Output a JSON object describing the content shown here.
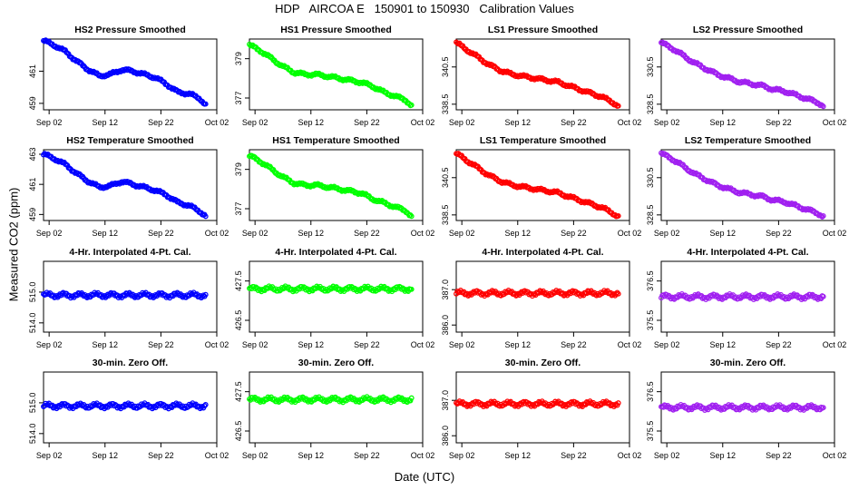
{
  "title": "HDP   AIRCOA E   150901 to 150930   Calibration Values",
  "ylabel": "Measured CO2 (ppm)",
  "xlabel": "Date (UTC)",
  "chart_data": [
    {
      "type": "scatter",
      "title": "HS2 Pressure Smoothed",
      "color": "#0000ff",
      "x_ticks": [
        "Sep 02",
        "Sep 12",
        "Sep 22",
        "Oct 02"
      ],
      "x_tick_days": [
        2,
        12,
        22,
        32
      ],
      "xlim": [
        1,
        32
      ],
      "y_ticks": [
        "459",
        "461"
      ],
      "y_tick_values": [
        459,
        461
      ],
      "ylim": [
        458.6,
        463.0
      ],
      "points": [
        [
          1,
          462.9
        ],
        [
          3,
          462.6
        ],
        [
          5,
          462.2
        ],
        [
          7,
          461.6
        ],
        [
          9,
          461.1
        ],
        [
          11,
          460.7
        ],
        [
          13,
          460.8
        ],
        [
          15,
          461.1
        ],
        [
          17,
          461.0
        ],
        [
          19,
          460.8
        ],
        [
          21,
          460.6
        ],
        [
          23,
          460.2
        ],
        [
          25,
          459.7
        ],
        [
          27,
          459.6
        ],
        [
          29,
          459.3
        ],
        [
          30,
          458.9
        ]
      ]
    },
    {
      "type": "scatter",
      "title": "HS1 Pressure Smoothed",
      "color": "#00ff00",
      "x_ticks": [
        "Sep 02",
        "Sep 12",
        "Sep 22",
        "Oct 02"
      ],
      "x_tick_days": [
        2,
        12,
        22,
        32
      ],
      "xlim": [
        1,
        32
      ],
      "y_ticks": [
        "377",
        "379"
      ],
      "y_tick_values": [
        377,
        379
      ],
      "ylim": [
        376.4,
        380.0
      ],
      "points": [
        [
          1,
          379.7
        ],
        [
          3,
          379.4
        ],
        [
          5,
          379.0
        ],
        [
          7,
          378.6
        ],
        [
          9,
          378.3
        ],
        [
          11,
          378.2
        ],
        [
          13,
          378.2
        ],
        [
          15,
          378.1
        ],
        [
          17,
          378.0
        ],
        [
          19,
          377.9
        ],
        [
          21,
          377.8
        ],
        [
          23,
          377.6
        ],
        [
          25,
          377.3
        ],
        [
          27,
          377.1
        ],
        [
          29,
          376.9
        ],
        [
          30,
          376.6
        ]
      ]
    },
    {
      "type": "scatter",
      "title": "LS1 Pressure Smoothed",
      "color": "#ff0000",
      "x_ticks": [
        "Sep 02",
        "Sep 12",
        "Sep 22",
        "Oct 02"
      ],
      "x_tick_days": [
        2,
        12,
        22,
        32
      ],
      "xlim": [
        1,
        32
      ],
      "y_ticks": [
        "338.5",
        "340.5"
      ],
      "y_tick_values": [
        338.5,
        340.5
      ],
      "ylim": [
        338.2,
        342.0
      ],
      "points": [
        [
          1,
          341.8
        ],
        [
          3,
          341.4
        ],
        [
          5,
          341.0
        ],
        [
          7,
          340.6
        ],
        [
          9,
          340.3
        ],
        [
          11,
          340.1
        ],
        [
          13,
          340.0
        ],
        [
          15,
          339.9
        ],
        [
          17,
          339.8
        ],
        [
          19,
          339.7
        ],
        [
          21,
          339.5
        ],
        [
          23,
          339.3
        ],
        [
          25,
          339.1
        ],
        [
          27,
          338.9
        ],
        [
          29,
          338.6
        ],
        [
          30,
          338.4
        ]
      ]
    },
    {
      "type": "scatter",
      "title": "LS2 Pressure Smoothed",
      "color": "#a020f0",
      "x_ticks": [
        "Sep 02",
        "Sep 12",
        "Sep 22",
        "Oct 02"
      ],
      "x_tick_days": [
        2,
        12,
        22,
        32
      ],
      "xlim": [
        1,
        32
      ],
      "y_ticks": [
        "328.5",
        "330.5"
      ],
      "y_tick_values": [
        328.5,
        330.5
      ],
      "ylim": [
        328.2,
        332.0
      ],
      "points": [
        [
          1,
          331.8
        ],
        [
          3,
          331.5
        ],
        [
          5,
          331.1
        ],
        [
          7,
          330.7
        ],
        [
          9,
          330.4
        ],
        [
          11,
          330.1
        ],
        [
          13,
          329.9
        ],
        [
          15,
          329.7
        ],
        [
          17,
          329.6
        ],
        [
          19,
          329.5
        ],
        [
          21,
          329.3
        ],
        [
          23,
          329.2
        ],
        [
          25,
          329.0
        ],
        [
          27,
          328.8
        ],
        [
          29,
          328.6
        ],
        [
          30,
          328.4
        ]
      ]
    },
    {
      "type": "scatter",
      "title": "HS2 Temperature Smoothed",
      "color": "#0000ff",
      "x_ticks": [
        "Sep 02",
        "Sep 12",
        "Sep 22",
        "Oct 02"
      ],
      "x_tick_days": [
        2,
        12,
        22,
        32
      ],
      "xlim": [
        1,
        32
      ],
      "y_ticks": [
        "459",
        "461",
        "463"
      ],
      "y_tick_values": [
        459,
        461,
        463
      ],
      "ylim": [
        458.6,
        463.3
      ],
      "points": [
        [
          1,
          463.0
        ],
        [
          3,
          462.7
        ],
        [
          5,
          462.3
        ],
        [
          7,
          461.7
        ],
        [
          9,
          461.2
        ],
        [
          11,
          460.8
        ],
        [
          13,
          460.9
        ],
        [
          15,
          461.2
        ],
        [
          17,
          461.0
        ],
        [
          19,
          460.8
        ],
        [
          21,
          460.6
        ],
        [
          23,
          460.3
        ],
        [
          25,
          459.8
        ],
        [
          27,
          459.6
        ],
        [
          29,
          459.2
        ],
        [
          30,
          458.9
        ]
      ]
    },
    {
      "type": "scatter",
      "title": "HS1 Temperature Smoothed",
      "color": "#00ff00",
      "x_ticks": [
        "Sep 02",
        "Sep 12",
        "Sep 22",
        "Oct 02"
      ],
      "x_tick_days": [
        2,
        12,
        22,
        32
      ],
      "xlim": [
        1,
        32
      ],
      "y_ticks": [
        "377",
        "379"
      ],
      "y_tick_values": [
        377,
        379
      ],
      "ylim": [
        376.4,
        380.0
      ],
      "points": [
        [
          1,
          379.7
        ],
        [
          3,
          379.4
        ],
        [
          5,
          379.0
        ],
        [
          7,
          378.6
        ],
        [
          9,
          378.3
        ],
        [
          11,
          378.2
        ],
        [
          13,
          378.2
        ],
        [
          15,
          378.1
        ],
        [
          17,
          378.0
        ],
        [
          19,
          377.9
        ],
        [
          21,
          377.8
        ],
        [
          23,
          377.5
        ],
        [
          25,
          377.3
        ],
        [
          27,
          377.1
        ],
        [
          29,
          376.9
        ],
        [
          30,
          376.6
        ]
      ]
    },
    {
      "type": "scatter",
      "title": "LS1 Temperature Smoothed",
      "color": "#ff0000",
      "x_ticks": [
        "Sep 02",
        "Sep 12",
        "Sep 22",
        "Oct 02"
      ],
      "x_tick_days": [
        2,
        12,
        22,
        32
      ],
      "xlim": [
        1,
        32
      ],
      "y_ticks": [
        "338.5",
        "340.5"
      ],
      "y_tick_values": [
        338.5,
        340.5
      ],
      "ylim": [
        338.2,
        342.0
      ],
      "points": [
        [
          1,
          341.8
        ],
        [
          3,
          341.4
        ],
        [
          5,
          341.0
        ],
        [
          7,
          340.6
        ],
        [
          9,
          340.3
        ],
        [
          11,
          340.1
        ],
        [
          13,
          340.0
        ],
        [
          15,
          339.9
        ],
        [
          17,
          339.8
        ],
        [
          19,
          339.7
        ],
        [
          21,
          339.5
        ],
        [
          23,
          339.3
        ],
        [
          25,
          339.1
        ],
        [
          27,
          338.9
        ],
        [
          29,
          338.6
        ],
        [
          30,
          338.4
        ]
      ]
    },
    {
      "type": "scatter",
      "title": "LS2 Temperature Smoothed",
      "color": "#a020f0",
      "x_ticks": [
        "Sep 02",
        "Sep 12",
        "Sep 22",
        "Oct 02"
      ],
      "x_tick_days": [
        2,
        12,
        22,
        32
      ],
      "xlim": [
        1,
        32
      ],
      "y_ticks": [
        "328.5",
        "330.5"
      ],
      "y_tick_values": [
        328.5,
        330.5
      ],
      "ylim": [
        328.2,
        332.0
      ],
      "points": [
        [
          1,
          331.8
        ],
        [
          3,
          331.5
        ],
        [
          5,
          331.1
        ],
        [
          7,
          330.7
        ],
        [
          9,
          330.4
        ],
        [
          11,
          330.1
        ],
        [
          13,
          329.9
        ],
        [
          15,
          329.7
        ],
        [
          17,
          329.6
        ],
        [
          19,
          329.5
        ],
        [
          21,
          329.3
        ],
        [
          23,
          329.2
        ],
        [
          25,
          329.0
        ],
        [
          27,
          328.8
        ],
        [
          29,
          328.6
        ],
        [
          30,
          328.4
        ]
      ]
    },
    {
      "type": "scatter",
      "title": "4-Hr. Interpolated 4-Pt. Cal.",
      "color": "#0000ff",
      "x_ticks": [
        "Sep 02",
        "Sep 12",
        "Sep 22",
        "Oct 02"
      ],
      "x_tick_days": [
        2,
        12,
        22,
        32
      ],
      "xlim": [
        1,
        32
      ],
      "y_ticks": [
        "514.0",
        "515.0"
      ],
      "y_tick_values": [
        514.0,
        515.0
      ],
      "ylim": [
        513.7,
        516.0
      ],
      "points": [
        [
          1,
          514.9
        ],
        [
          5,
          514.9
        ],
        [
          10,
          514.9
        ],
        [
          15,
          514.9
        ],
        [
          20,
          514.9
        ],
        [
          25,
          514.9
        ],
        [
          30,
          514.9
        ]
      ]
    },
    {
      "type": "scatter",
      "title": "4-Hr. Interpolated 4-Pt. Cal.",
      "color": "#00ff00",
      "x_ticks": [
        "Sep 02",
        "Sep 12",
        "Sep 22",
        "Oct 02"
      ],
      "x_tick_days": [
        2,
        12,
        22,
        32
      ],
      "xlim": [
        1,
        32
      ],
      "y_ticks": [
        "426.5",
        "427.5"
      ],
      "y_tick_values": [
        426.5,
        427.5
      ],
      "ylim": [
        426.2,
        428.0
      ],
      "points": [
        [
          1,
          427.3
        ],
        [
          5,
          427.3
        ],
        [
          10,
          427.3
        ],
        [
          15,
          427.3
        ],
        [
          20,
          427.3
        ],
        [
          25,
          427.3
        ],
        [
          30,
          427.3
        ]
      ]
    },
    {
      "type": "scatter",
      "title": "4-Hr. Interpolated 4-Pt. Cal.",
      "color": "#ff0000",
      "x_ticks": [
        "Sep 02",
        "Sep 12",
        "Sep 22",
        "Oct 02"
      ],
      "x_tick_days": [
        2,
        12,
        22,
        32
      ],
      "xlim": [
        1,
        32
      ],
      "y_ticks": [
        "386.0",
        "387.0"
      ],
      "y_tick_values": [
        386.0,
        387.0
      ],
      "ylim": [
        385.8,
        387.8
      ],
      "points": [
        [
          1,
          386.9
        ],
        [
          5,
          386.9
        ],
        [
          10,
          386.9
        ],
        [
          15,
          386.9
        ],
        [
          20,
          386.9
        ],
        [
          25,
          386.9
        ],
        [
          30,
          386.9
        ]
      ]
    },
    {
      "type": "scatter",
      "title": "4-Hr. Interpolated 4-Pt. Cal.",
      "color": "#a020f0",
      "x_ticks": [
        "Sep 02",
        "Sep 12",
        "Sep 22",
        "Oct 02"
      ],
      "x_tick_days": [
        2,
        12,
        22,
        32
      ],
      "xlim": [
        1,
        32
      ],
      "y_ticks": [
        "375.5",
        "376.5"
      ],
      "y_tick_values": [
        375.5,
        376.5
      ],
      "ylim": [
        375.2,
        377.0
      ],
      "points": [
        [
          1,
          376.1
        ],
        [
          5,
          376.1
        ],
        [
          10,
          376.1
        ],
        [
          15,
          376.1
        ],
        [
          20,
          376.1
        ],
        [
          25,
          376.1
        ],
        [
          30,
          376.1
        ]
      ]
    },
    {
      "type": "scatter",
      "title": "30-min. Zero Off.",
      "color": "#0000ff",
      "x_ticks": [
        "Sep 02",
        "Sep 12",
        "Sep 22",
        "Oct 02"
      ],
      "x_tick_days": [
        2,
        12,
        22,
        32
      ],
      "xlim": [
        1,
        32
      ],
      "y_ticks": [
        "514.0",
        "515.0"
      ],
      "y_tick_values": [
        514.0,
        515.0
      ],
      "ylim": [
        513.7,
        516.0
      ],
      "points": [
        [
          1,
          514.9
        ],
        [
          5,
          514.9
        ],
        [
          10,
          514.9
        ],
        [
          15,
          514.9
        ],
        [
          20,
          514.9
        ],
        [
          25,
          514.9
        ],
        [
          30,
          514.9
        ]
      ]
    },
    {
      "type": "scatter",
      "title": "30-min. Zero Off.",
      "color": "#00ff00",
      "x_ticks": [
        "Sep 02",
        "Sep 12",
        "Sep 22",
        "Oct 02"
      ],
      "x_tick_days": [
        2,
        12,
        22,
        32
      ],
      "xlim": [
        1,
        32
      ],
      "y_ticks": [
        "426.5",
        "427.5"
      ],
      "y_tick_values": [
        426.5,
        427.5
      ],
      "ylim": [
        426.2,
        428.0
      ],
      "points": [
        [
          1,
          427.3
        ],
        [
          5,
          427.3
        ],
        [
          10,
          427.3
        ],
        [
          15,
          427.3
        ],
        [
          20,
          427.3
        ],
        [
          25,
          427.3
        ],
        [
          30,
          427.3
        ]
      ]
    },
    {
      "type": "scatter",
      "title": "30-min. Zero Off.",
      "color": "#ff0000",
      "x_ticks": [
        "Sep 02",
        "Sep 12",
        "Sep 22",
        "Oct 02"
      ],
      "x_tick_days": [
        2,
        12,
        22,
        32
      ],
      "xlim": [
        1,
        32
      ],
      "y_ticks": [
        "386.0",
        "387.0"
      ],
      "y_tick_values": [
        386.0,
        387.0
      ],
      "ylim": [
        385.8,
        387.8
      ],
      "points": [
        [
          1,
          386.9
        ],
        [
          5,
          386.9
        ],
        [
          10,
          386.9
        ],
        [
          15,
          386.9
        ],
        [
          20,
          386.9
        ],
        [
          25,
          386.9
        ],
        [
          30,
          386.9
        ]
      ]
    },
    {
      "type": "scatter",
      "title": "30-min. Zero Off.",
      "color": "#a020f0",
      "x_ticks": [
        "Sep 02",
        "Sep 12",
        "Sep 22",
        "Oct 02"
      ],
      "x_tick_days": [
        2,
        12,
        22,
        32
      ],
      "xlim": [
        1,
        32
      ],
      "y_ticks": [
        "375.5",
        "376.5"
      ],
      "y_tick_values": [
        375.5,
        376.5
      ],
      "ylim": [
        375.2,
        377.0
      ],
      "points": [
        [
          1,
          376.1
        ],
        [
          5,
          376.1
        ],
        [
          10,
          376.1
        ],
        [
          15,
          376.1
        ],
        [
          20,
          376.1
        ],
        [
          25,
          376.1
        ],
        [
          30,
          376.1
        ]
      ]
    }
  ]
}
